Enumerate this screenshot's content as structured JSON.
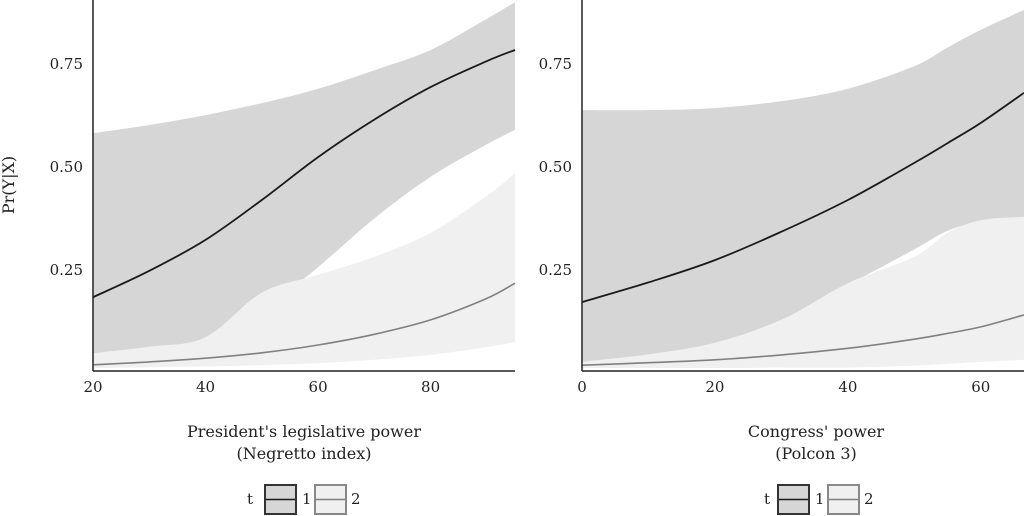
{
  "colors": {
    "band_1": "#d6d6d6",
    "band_2": "#f0f0f0",
    "line_1": "#1a1a1a",
    "line_2": "#808080",
    "axis": "#222222"
  },
  "chart_data": [
    {
      "type": "area",
      "panel": "left",
      "xlabel": [
        "President's legislative power",
        "(Negretto index)"
      ],
      "ylabel": "Pr(Y|X)",
      "xlim": [
        20,
        95
      ],
      "ylim": [
        0,
        0.905
      ],
      "xticks": [
        20,
        40,
        60,
        80
      ],
      "xtick_labels": [
        "20",
        "40",
        "60",
        "80"
      ],
      "yticks": [
        0.25,
        0.5,
        0.75
      ],
      "ytick_labels": [
        "0.25",
        "0.50",
        "0.75"
      ],
      "grid": false,
      "legend": {
        "title": "t",
        "entries": [
          "1",
          "2"
        ],
        "placement": "bottom"
      },
      "x": [
        20,
        30,
        40,
        50,
        60,
        70,
        80,
        90,
        95
      ],
      "series": [
        {
          "name": "1",
          "values": [
            0.184,
            0.248,
            0.323,
            0.42,
            0.524,
            0.615,
            0.694,
            0.757,
            0.784
          ],
          "lower": [
            0.044,
            0.058,
            0.08,
            0.15,
            0.257,
            0.375,
            0.476,
            0.555,
            0.59
          ],
          "upper": [
            0.582,
            0.602,
            0.626,
            0.655,
            0.69,
            0.735,
            0.784,
            0.86,
            0.9
          ]
        },
        {
          "name": "2",
          "values": [
            0.02,
            0.027,
            0.036,
            0.049,
            0.068,
            0.094,
            0.129,
            0.181,
            0.218
          ],
          "lower": [
            0.012,
            0.014,
            0.016,
            0.019,
            0.024,
            0.032,
            0.044,
            0.063,
            0.075
          ],
          "upper": [
            0.048,
            0.064,
            0.087,
            0.195,
            0.238,
            0.282,
            0.34,
            0.43,
            0.485
          ]
        }
      ]
    },
    {
      "type": "area",
      "panel": "right",
      "xlabel": [
        "Congress' power",
        "(Polcon 3)"
      ],
      "ylabel": "",
      "xlim": [
        0,
        66.5
      ],
      "ylim": [
        0,
        0.905
      ],
      "xticks": [
        0,
        20,
        40,
        60
      ],
      "xtick_labels": [
        "0",
        "20",
        "40",
        "60"
      ],
      "yticks": [
        0.25,
        0.5,
        0.75
      ],
      "ytick_labels": [
        "0.25",
        "0.50",
        "0.75"
      ],
      "grid": false,
      "legend": {
        "title": "t",
        "entries": [
          "1",
          "2"
        ],
        "placement": "bottom"
      },
      "x": [
        0,
        10,
        20,
        30,
        40,
        50,
        55,
        60,
        66.5
      ],
      "series": [
        {
          "name": "1",
          "values": [
            0.172,
            0.22,
            0.274,
            0.343,
            0.42,
            0.51,
            0.558,
            0.607,
            0.68
          ],
          "lower": [
            0.027,
            0.045,
            0.073,
            0.129,
            0.214,
            0.3,
            0.345,
            0.367,
            0.379
          ],
          "upper": [
            0.638,
            0.638,
            0.643,
            0.66,
            0.69,
            0.745,
            0.79,
            0.833,
            0.881
          ]
        },
        {
          "name": "2",
          "values": [
            0.019,
            0.025,
            0.032,
            0.044,
            0.06,
            0.082,
            0.096,
            0.112,
            0.141
          ],
          "lower": [
            0.012,
            0.012,
            0.012,
            0.013,
            0.013,
            0.018,
            0.022,
            0.027,
            0.032
          ],
          "upper": [
            0.027,
            0.045,
            0.073,
            0.129,
            0.218,
            0.282,
            0.34,
            0.371,
            0.379
          ]
        }
      ]
    }
  ]
}
